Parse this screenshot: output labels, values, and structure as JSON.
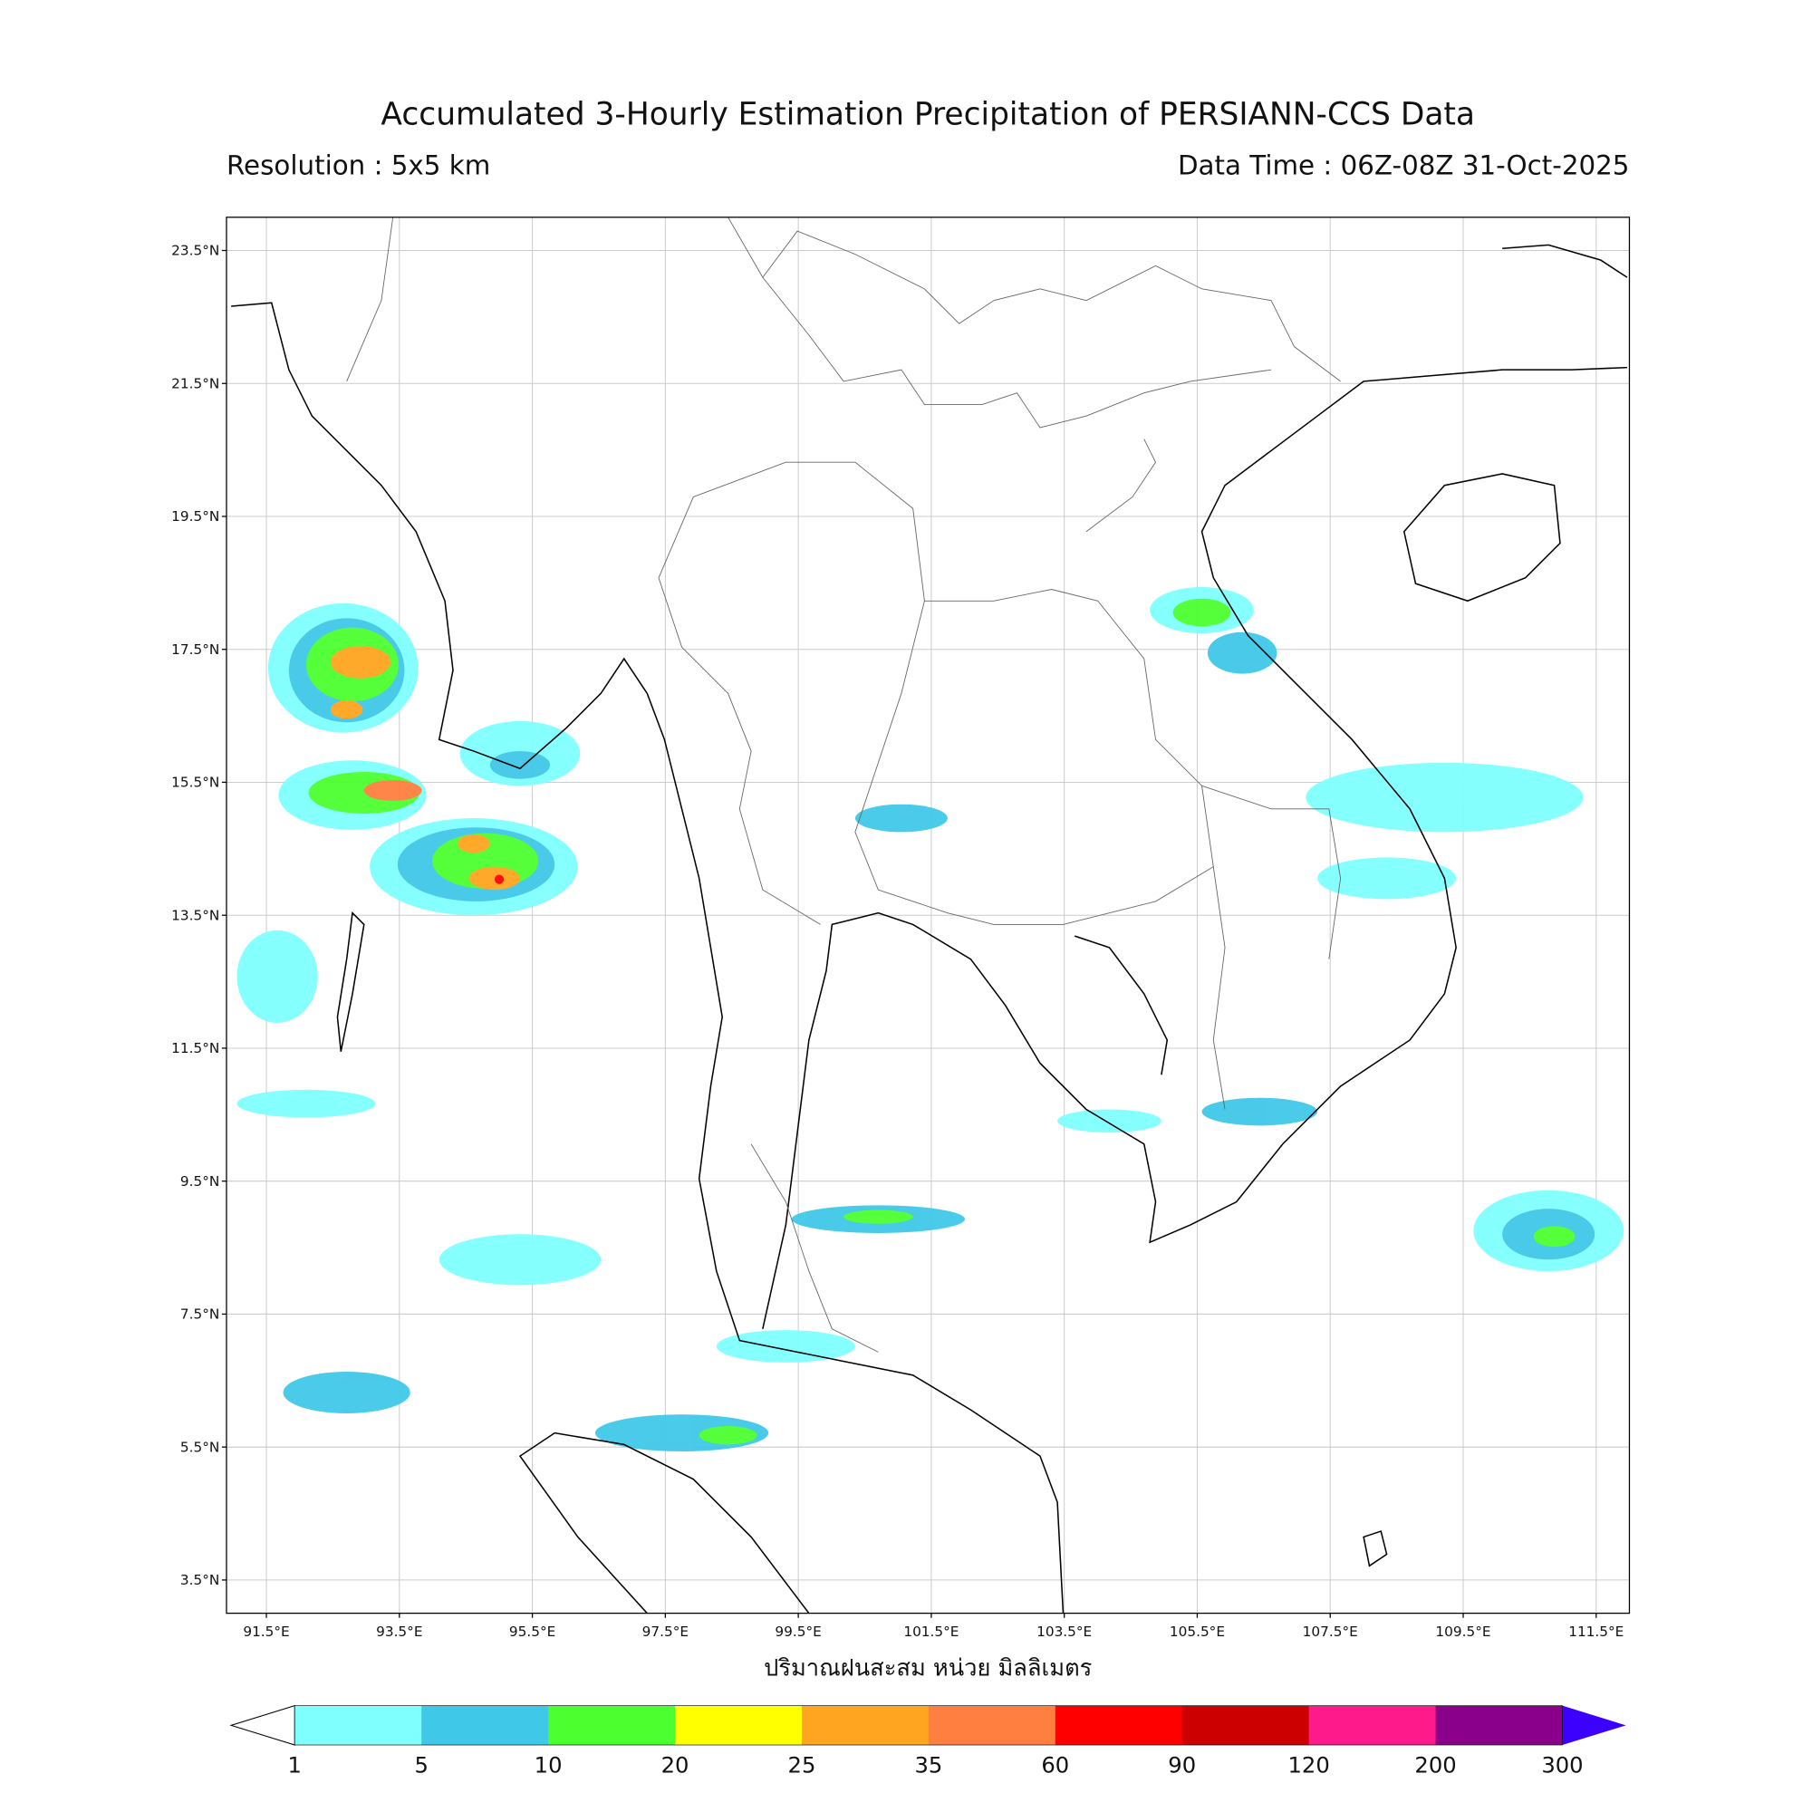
{
  "map": {
    "title": "Accumulated 3-Hourly Estimation Precipitation of PERSIANN-CCS Data",
    "subtitle_left": "Resolution : 5x5 km",
    "subtitle_right": "Data Time : 06Z-08Z 31-Oct-2025",
    "xlabel": "ปริมาณฝนสะสม หน่วย มิลลิเมตร",
    "xlim": [
      90.9,
      112.0
    ],
    "ylim": [
      3.0,
      24.0
    ],
    "grid": true,
    "xticks": [
      {
        "value": 91.5,
        "label": "91.5°E"
      },
      {
        "value": 93.5,
        "label": "93.5°E"
      },
      {
        "value": 95.5,
        "label": "95.5°E"
      },
      {
        "value": 97.5,
        "label": "97.5°E"
      },
      {
        "value": 99.5,
        "label": "99.5°E"
      },
      {
        "value": 101.5,
        "label": "101.5°E"
      },
      {
        "value": 103.5,
        "label": "103.5°E"
      },
      {
        "value": 105.5,
        "label": "105.5°E"
      },
      {
        "value": 107.5,
        "label": "107.5°E"
      },
      {
        "value": 109.5,
        "label": "109.5°E"
      },
      {
        "value": 111.5,
        "label": "111.5°E"
      }
    ],
    "yticks": [
      {
        "value": 23.5,
        "label": "23.5°N"
      },
      {
        "value": 21.5,
        "label": "21.5°N"
      },
      {
        "value": 19.5,
        "label": "19.5°N"
      },
      {
        "value": 17.5,
        "label": "17.5°N"
      },
      {
        "value": 15.5,
        "label": "15.5°N"
      },
      {
        "value": 13.5,
        "label": "13.5°N"
      },
      {
        "value": 11.5,
        "label": "11.5°N"
      },
      {
        "value": 9.5,
        "label": "9.5°N"
      },
      {
        "value": 7.5,
        "label": "7.5°N"
      },
      {
        "value": 5.5,
        "label": "5.5°N"
      },
      {
        "value": 3.5,
        "label": "3.5°N"
      }
    ]
  },
  "colorbar": {
    "levels": [
      1,
      5,
      10,
      20,
      25,
      35,
      60,
      90,
      120,
      200,
      300
    ],
    "colors": [
      "#80ffff",
      "#40c8e8",
      "#4cff2f",
      "#ffff00",
      "#ffa520",
      "#ff7f40",
      "#ff0000",
      "#cc0000",
      "#ff1a8c",
      "#8b008b"
    ],
    "under_color": "#ffffff",
    "over_color": "#3c00ff"
  }
}
